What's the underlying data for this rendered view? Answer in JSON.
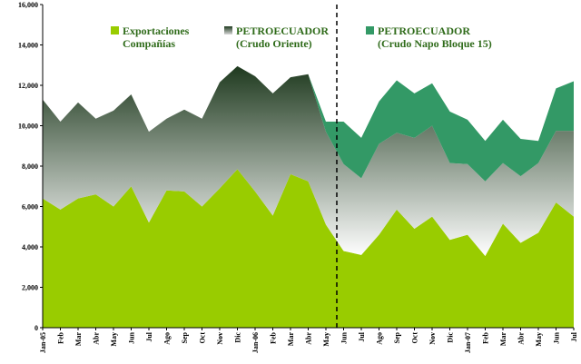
{
  "chart_data": {
    "type": "stacked_area",
    "categories": [
      "Jan-05",
      "Feb",
      "Mar",
      "Abr",
      "May",
      "Jun",
      "Jul",
      "Ago",
      "Sep",
      "Oct",
      "Nov",
      "Dic",
      "Jan-06",
      "Feb",
      "Mar",
      "Abr",
      "May",
      "Jun",
      "Jul",
      "Ago",
      "Sep",
      "Oct",
      "Nov",
      "Dic",
      "Jan-07",
      "Feb",
      "Mar",
      "Abr",
      "May",
      "Jun",
      "Jul"
    ],
    "series": [
      {
        "name": "Exportaciones Compañías",
        "color": "#99cc00",
        "values": [
          6400,
          5850,
          6400,
          6600,
          6000,
          7000,
          5200,
          6800,
          6750,
          6000,
          6900,
          7850,
          6750,
          5550,
          7600,
          7250,
          5100,
          3800,
          3600,
          4600,
          5850,
          4900,
          5500,
          4350,
          4600,
          3550,
          5150,
          4200,
          4700,
          6200,
          5500
        ]
      },
      {
        "name": "PETROECUADOR (Crudo Oriente)",
        "color": "#1f3a1f",
        "values": [
          4900,
          4350,
          4750,
          3750,
          4750,
          4550,
          4500,
          3550,
          4050,
          4350,
          5250,
          5100,
          5700,
          6050,
          4800,
          5300,
          4600,
          4300,
          3800,
          4500,
          3800,
          4500,
          4500,
          3800,
          3500,
          3700,
          3000,
          3300,
          3450,
          3550,
          4250
        ]
      },
      {
        "name": "PETROECUADOR (Crudo Napo Bloque 15)",
        "color": "#339966",
        "values": [
          0,
          0,
          0,
          0,
          0,
          0,
          0,
          0,
          0,
          0,
          0,
          0,
          0,
          0,
          0,
          0,
          500,
          2100,
          2000,
          2100,
          2600,
          2200,
          2100,
          2550,
          2200,
          2000,
          2150,
          1850,
          1100,
          2100,
          2450
        ]
      }
    ],
    "ylim": [
      0,
      16000
    ],
    "yticks": [
      0,
      {
        "value": 2000,
        "label": "2,000"
      },
      {
        "value": 4000,
        "label": "4,000"
      },
      {
        "value": 6000,
        "label": "6,000"
      },
      {
        "value": 8000,
        "label": "8,000"
      },
      {
        "value": 10000,
        "label": "10,000"
      },
      {
        "value": 12000,
        "label": "12,000"
      },
      {
        "value": 14000,
        "label": "14,000"
      },
      {
        "value": 16000,
        "label": "16,000"
      }
    ]
  }
}
